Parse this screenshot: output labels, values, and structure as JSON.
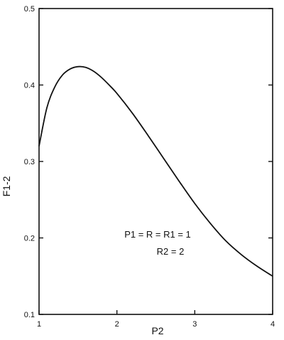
{
  "chart_data": {
    "type": "line",
    "title": "",
    "xlabel": "P2",
    "ylabel": "F1-2",
    "xlim": [
      1,
      4
    ],
    "ylim": [
      0.1,
      0.5
    ],
    "xticks": [
      1,
      2,
      3,
      4
    ],
    "yticks": [
      0.1,
      0.2,
      0.3,
      0.4,
      0.5
    ],
    "xtick_labels": [
      "1",
      "2",
      "3",
      "4"
    ],
    "ytick_labels": [
      "0.1",
      "0.2",
      "0.3",
      "0.4",
      "0.5"
    ],
    "grid": false,
    "series": [
      {
        "x": [
          1.0,
          1.1,
          1.2,
          1.3,
          1.4,
          1.5,
          1.6,
          1.7,
          1.8,
          1.9,
          2.0,
          2.2,
          2.4,
          2.6,
          2.8,
          3.0,
          3.2,
          3.4,
          3.6,
          3.8,
          4.0
        ],
        "y": [
          0.32,
          0.37,
          0.397,
          0.413,
          0.421,
          0.424,
          0.423,
          0.418,
          0.41,
          0.4,
          0.389,
          0.363,
          0.334,
          0.304,
          0.274,
          0.245,
          0.219,
          0.196,
          0.178,
          0.163,
          0.15
        ]
      }
    ],
    "annotations": [
      "P1 = R = R1 = 1",
      "R2 = 2"
    ]
  }
}
